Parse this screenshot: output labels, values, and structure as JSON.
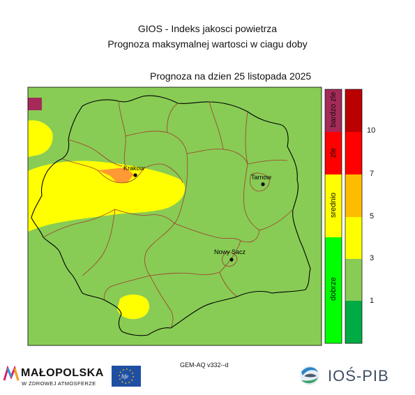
{
  "header": {
    "title_line1": "GIOS - Indeks jakosci powietrza",
    "title_line2": "Prognoza maksymalnej wartosci w ciagu doby",
    "forecast_date": "Prognoza na dzien  25 listopada 2025"
  },
  "cities": [
    {
      "name": "Krakow"
    },
    {
      "name": "Tarnow"
    },
    {
      "name": "Nowy Sacz"
    }
  ],
  "legend": {
    "categories": [
      {
        "label": "dobrze",
        "color": "#00ff00"
      },
      {
        "label": "srednio",
        "color": "#ffff00"
      },
      {
        "label": "zle",
        "color": "#ff0000"
      },
      {
        "label": "bardzo zle",
        "color": "#a52a5a"
      }
    ],
    "scale": [
      {
        "color": "#00aa44"
      },
      {
        "color": "#88cc55"
      },
      {
        "color": "#ffff00"
      },
      {
        "color": "#ffbb00"
      },
      {
        "color": "#ff0000"
      },
      {
        "color": "#bb0000"
      }
    ],
    "ticks": [
      "1",
      "3",
      "5",
      "7",
      "10"
    ]
  },
  "colors": {
    "good": "#88cc55",
    "moderate": "#ffff00",
    "elevated": "#ff9933"
  },
  "footer": {
    "model": "GEM-AQ v332--d",
    "malopolska": "MAŁOPOLSKA",
    "malopolska_sub": "W ZDROWEJ ATMOSFERZE",
    "eu_logo_text": "life",
    "ios": "IOŚ-PIB"
  }
}
